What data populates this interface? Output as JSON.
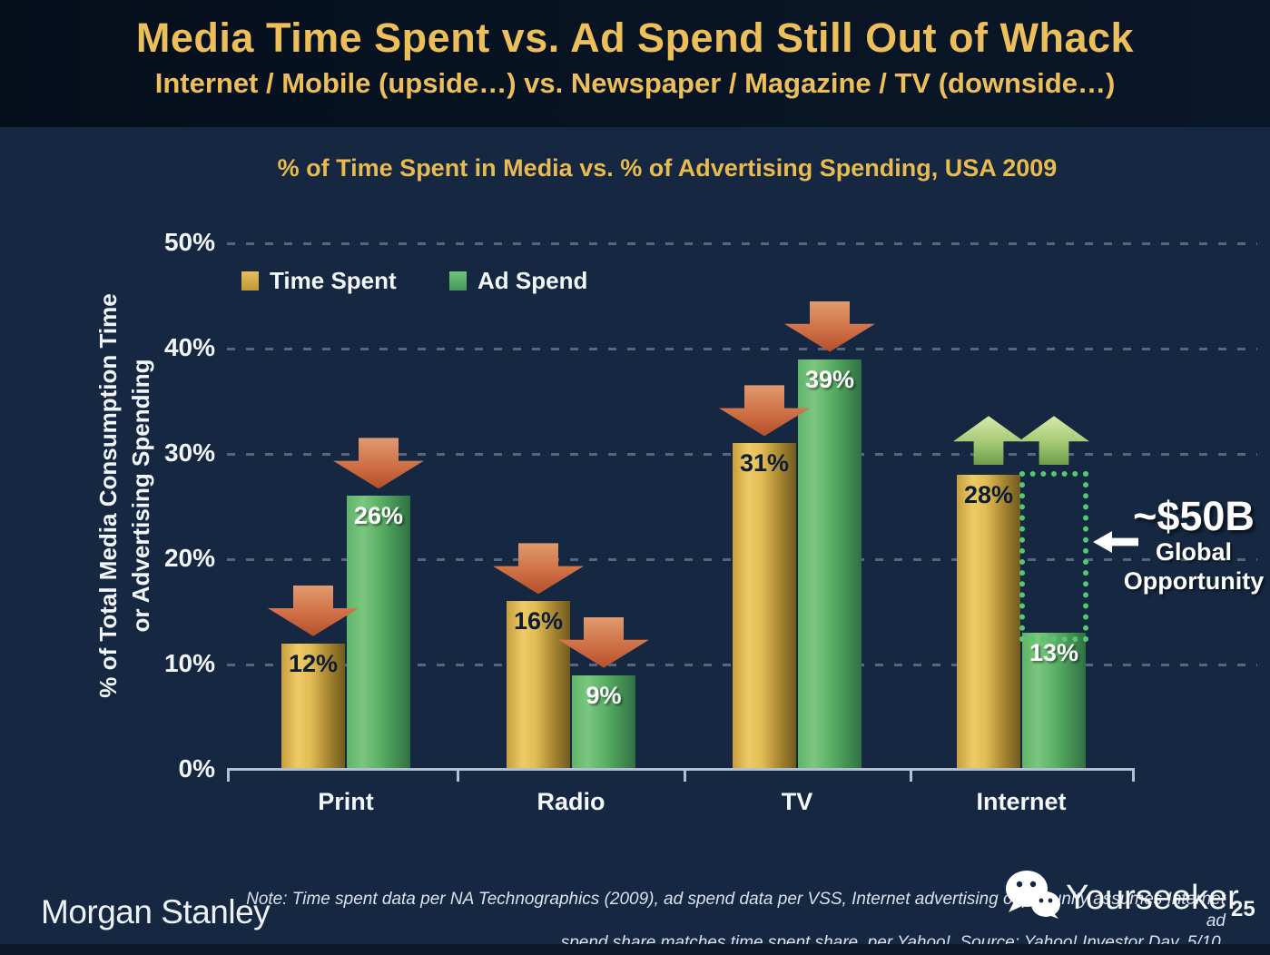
{
  "slide": {
    "title": "Media Time Spent vs. Ad Spend Still Out of Whack",
    "subtitle": "Internet / Mobile (upside…) vs. Newspaper / Magazine / TV (downside…)"
  },
  "chart": {
    "title": "% of Time Spent in Media vs. % of Advertising Spending, USA 2009",
    "y_axis_title_line1": "% of Total Media Consumption Time",
    "y_axis_title_line2": "or Advertising Spending",
    "y_ticks": [
      "0%",
      "10%",
      "20%",
      "30%",
      "40%",
      "50%"
    ],
    "legend": {
      "time_spent": "Time Spent",
      "ad_spend": "Ad Spend"
    }
  },
  "chart_data": {
    "type": "bar",
    "title": "% of Time Spent in Media vs. % of Advertising Spending, USA 2009",
    "categories": [
      "Print",
      "Radio",
      "TV",
      "Internet"
    ],
    "series": [
      {
        "name": "Time Spent",
        "color": "#E2B64F",
        "values": [
          12,
          16,
          31,
          28
        ]
      },
      {
        "name": "Ad Spend",
        "color": "#57B169",
        "values": [
          26,
          9,
          39,
          13
        ]
      }
    ],
    "value_suffix": "%",
    "ylim": [
      0,
      50
    ],
    "y_tick_step": 10,
    "grid": "dashed-horizontal",
    "legend_position": "top-left",
    "trend_arrows": [
      [
        "down",
        "down"
      ],
      [
        "down",
        "down"
      ],
      [
        "down",
        "down"
      ],
      [
        "up",
        "up"
      ]
    ],
    "opportunity_gap": {
      "category": "Internet",
      "from_series": "Ad Spend",
      "to_series": "Time Spent",
      "label": "~$50B Global Opportunity"
    }
  },
  "annotation": {
    "value": "~$50B",
    "line1": "Global",
    "line2": "Opportunity"
  },
  "footer": {
    "logo": "Morgan Stanley",
    "note_line1": "Note: Time spent data per NA Technographics (2009), ad spend data per VSS, Internet advertising opportunity assumes Internet ad",
    "note_line2": "spend share matches time spent share, per Yahoo!. Source: Yahoo! Investor Day, 5/10.",
    "page_number": "25"
  },
  "watermark": {
    "text": "Yourseeker",
    "icon": "wechat-icon"
  },
  "colors": {
    "header_bg": "#081423",
    "body_bg": "#152741",
    "title_gold": "#ECBF5B",
    "bar_gold": "#E2B64F",
    "bar_green": "#57B169",
    "arrow_red": "#C96A44",
    "arrow_green": "#A8CC79",
    "dotted_green": "#55C873",
    "axis": "#B3C0D3"
  }
}
